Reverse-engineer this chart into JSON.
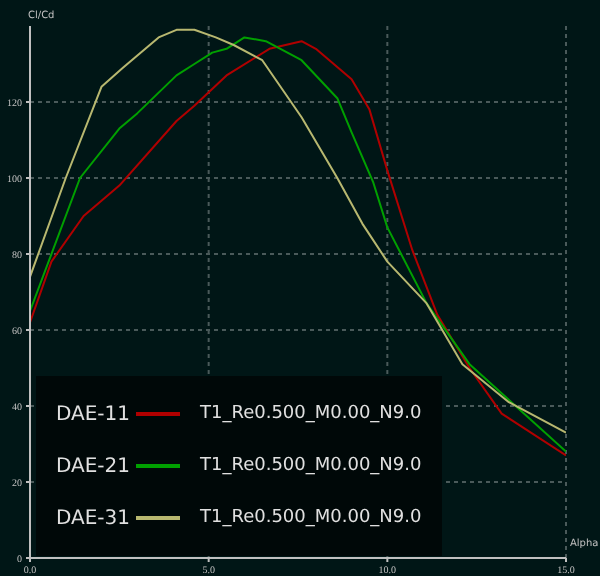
{
  "chart_data": {
    "type": "line",
    "xlabel": "Alpha",
    "ylabel": "Cl/Cd",
    "xlim": [
      0,
      15
    ],
    "xticks": [
      {
        "value": 0,
        "label": "0.0"
      },
      {
        "value": 5,
        "label": "5.0"
      },
      {
        "value": 10,
        "label": "10.0"
      },
      {
        "value": 15,
        "label": "15.0"
      }
    ],
    "ylim": [
      0,
      140
    ],
    "yticks": [
      0,
      20,
      40,
      60,
      80,
      100,
      120
    ],
    "grid": true,
    "legend": "bottom left",
    "marker": "none",
    "line_style": "solid",
    "annotations": [
      "T1_Re0.500_M0.00_N9.0",
      "T1_Re0.500_M0.00_N9.0",
      "T1_Re0.500_M0.00_N9.0"
    ],
    "series": [
      {
        "name": "DAE-11",
        "color": "#b00000",
        "x": [
          0,
          0.6,
          1.5,
          2.5,
          4.1,
          4.6,
          5.5,
          6.7,
          7.6,
          8.0,
          9.0,
          9.5,
          10.0,
          10.7,
          11.4,
          12.3,
          13.2,
          15
        ],
        "values": [
          62,
          78,
          90,
          98,
          115,
          119,
          127,
          134,
          136,
          134,
          126,
          118,
          102,
          81,
          64,
          50,
          38,
          27
        ]
      },
      {
        "name": "DAE-21",
        "color": "#00a000",
        "x": [
          0,
          1.4,
          2.5,
          3.0,
          4.1,
          4.6,
          5.1,
          5.5,
          6.0,
          6.6,
          7.6,
          8.6,
          9.0,
          9.6,
          10.0,
          11.1,
          12.3,
          15
        ],
        "values": [
          65,
          100,
          113,
          117,
          127,
          130,
          133,
          134,
          137,
          136,
          131,
          121,
          112,
          99,
          87,
          67,
          51,
          28
        ]
      },
      {
        "name": "DAE-31",
        "color": "#b8b870",
        "x": [
          0,
          1.0,
          2.0,
          2.6,
          3.6,
          4.1,
          4.6,
          5.2,
          5.7,
          6.5,
          7.6,
          8.6,
          9.3,
          10.0,
          11.1,
          12.1,
          13.4,
          15
        ],
        "values": [
          74,
          100,
          124,
          129,
          137,
          139,
          139,
          137,
          135,
          131,
          116,
          100,
          88,
          78,
          67,
          51,
          41,
          33
        ]
      }
    ]
  }
}
